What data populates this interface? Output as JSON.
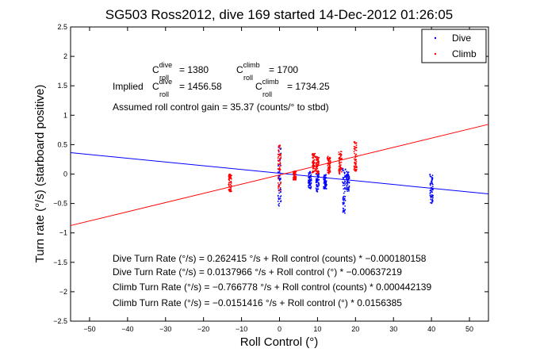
{
  "chart_data": {
    "type": "scatter",
    "title": "SG503 Ross2012, dive 169 started 14-Dec-2012 01:26:05",
    "xlabel": "Roll Control (°)",
    "ylabel": "Turn rate (°/s) (starboard positive)",
    "xlim": [
      -55,
      55
    ],
    "ylim": [
      -2.5,
      2.5
    ],
    "x_ticks": [
      "−50",
      "−40",
      "−30",
      "−20",
      "−10",
      "0",
      "10",
      "20",
      "30",
      "40",
      "50"
    ],
    "y_ticks": [
      "2.5",
      "2",
      "1.5",
      "1",
      "0.5",
      "0",
      "−0.5",
      "−1",
      "−1.5",
      "−2",
      "−2.5"
    ],
    "grid": false,
    "legend_position": "top-right",
    "series": [
      {
        "name": "Dive",
        "color": "#0000ff",
        "clusters": [
          {
            "x": 0,
            "y_range": [
              -0.55,
              0.5
            ]
          },
          {
            "x": 8,
            "y_range": [
              -0.25,
              0.05
            ]
          },
          {
            "x": 10,
            "y_range": [
              -0.3,
              0.05
            ]
          },
          {
            "x": 12,
            "y_range": [
              -0.25,
              0.0
            ]
          },
          {
            "x": 17,
            "y_range": [
              -0.7,
              0.1
            ]
          },
          {
            "x": 18,
            "y_range": [
              -0.3,
              0.05
            ]
          },
          {
            "x": 40,
            "y_range": [
              -0.5,
              0.0
            ]
          }
        ]
      },
      {
        "name": "Climb",
        "color": "#ff0000",
        "clusters": [
          {
            "x": -13,
            "y_range": [
              -0.3,
              0.0
            ]
          },
          {
            "x": 0,
            "y_range": [
              -0.3,
              0.5
            ]
          },
          {
            "x": 4,
            "y_range": [
              -0.1,
              0.05
            ]
          },
          {
            "x": 9,
            "y_range": [
              0.0,
              0.35
            ]
          },
          {
            "x": 10,
            "y_range": [
              0.0,
              0.3
            ]
          },
          {
            "x": 13,
            "y_range": [
              0.0,
              0.3
            ]
          },
          {
            "x": 16,
            "y_range": [
              0.0,
              0.4
            ]
          },
          {
            "x": 20,
            "y_range": [
              0.05,
              0.55
            ]
          }
        ]
      }
    ],
    "fit_lines": [
      {
        "series": "Dive",
        "color": "#0000ff",
        "slope": -0.00637219,
        "intercept": 0.0137966
      },
      {
        "series": "Climb",
        "color": "#ff0000",
        "slope": 0.0156385,
        "intercept": -0.0151416
      }
    ],
    "annotations": {
      "c_dive": {
        "base": "C",
        "sup": "dive",
        "sub": "roll",
        "value": " = 1380"
      },
      "c_climb": {
        "base": "C",
        "sup": "climb",
        "sub": "roll",
        "value": " = 1700"
      },
      "implied_prefix": "Implied ",
      "implied_dive": {
        "base": "C",
        "sup": "dive",
        "sub": "roll",
        "value": " = 1456.58"
      },
      "implied_climb": {
        "base": "C",
        "sup": "climb",
        "sub": "roll",
        "value": " = 1734.25"
      },
      "gain": "Assumed roll control gain = 35.37 (counts/° to stbd)",
      "eq1": "Dive Turn Rate (°/s) = 0.262415 °/s + Roll control (counts) * −0.000180158",
      "eq2": "Dive Turn Rate (°/s) = 0.0137966 °/s + Roll control (°) * −0.00637219",
      "eq3": "Climb Turn Rate (°/s) = −0.766778 °/s + Roll control (counts) * 0.000442139",
      "eq4": "Climb Turn Rate (°/s) = −0.0151416 °/s + Roll control (°) * 0.0156385"
    }
  }
}
